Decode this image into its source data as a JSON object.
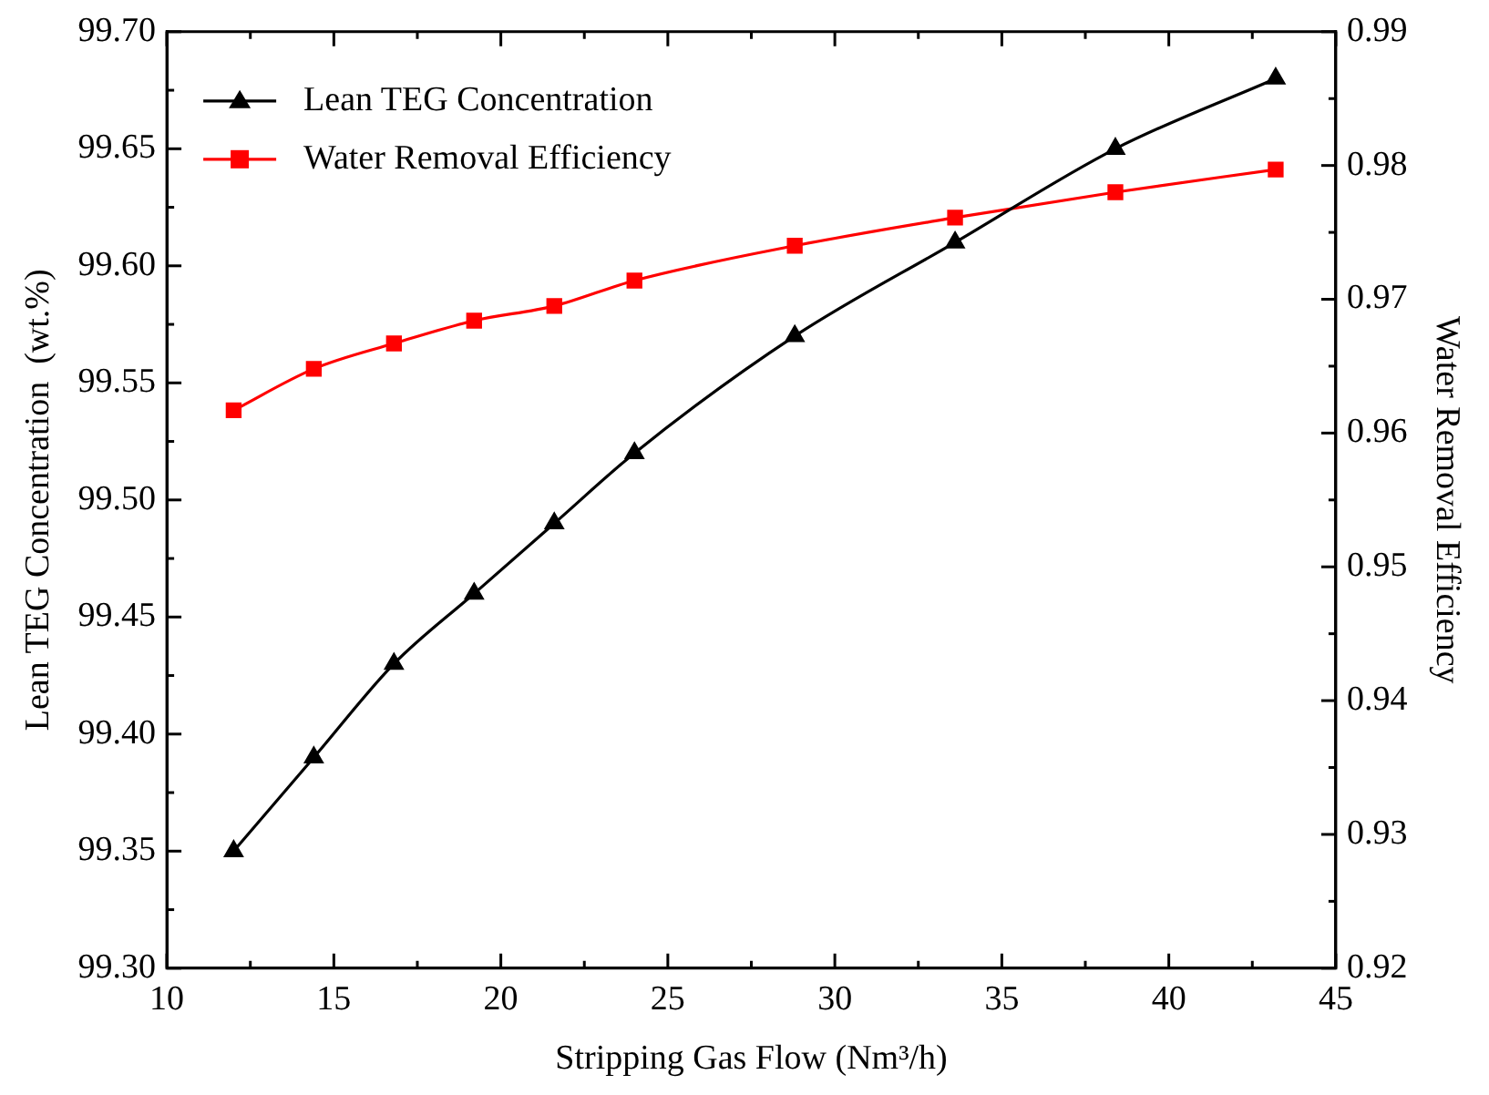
{
  "chart_data": {
    "type": "line",
    "xlabel": "Stripping Gas Flow (Nm³/h)",
    "ylabel": "Lean TEG Concentration  (wt.%)",
    "y2label": "Water Removal Efficiency",
    "x": [
      12,
      14.4,
      16.8,
      19.2,
      21.6,
      24,
      28.8,
      33.6,
      38.4,
      43.2
    ],
    "series": [
      {
        "name": "Lean TEG Concentration",
        "color": "#000000",
        "marker": "triangle",
        "values": [
          99.35,
          99.39,
          99.43,
          99.46,
          99.49,
          99.52,
          99.57,
          99.61,
          99.65,
          99.68
        ]
      },
      {
        "name": "Water Removal Efficiency",
        "color": "#ff0000",
        "marker": "square",
        "axis": "y2",
        "values": [
          0.9617,
          0.9648,
          0.9667,
          0.9684,
          0.9695,
          0.9714,
          0.974,
          0.9761,
          0.978,
          0.9797
        ]
      }
    ],
    "xlim": [
      10,
      45
    ],
    "xticks": [
      10,
      {
        "value": 12.5,
        "label": null
      },
      15,
      {
        "value": 17.5,
        "label": null
      },
      20,
      {
        "value": 22.5,
        "label": null
      },
      25,
      {
        "value": 27.5,
        "label": null
      },
      30,
      {
        "value": 32.5,
        "label": null
      },
      35,
      {
        "value": 37.5,
        "label": null
      },
      40,
      {
        "value": 42.5,
        "label": null
      },
      45
    ],
    "ylim": [
      99.3,
      99.7
    ],
    "yticks": [
      {
        "value": 99.3,
        "label": "99.30"
      },
      {
        "value": 99.325,
        "label": null
      },
      {
        "value": 99.35,
        "label": "99.35"
      },
      {
        "value": 99.375,
        "label": null
      },
      {
        "value": 99.4,
        "label": "99.40"
      },
      {
        "value": 99.425,
        "label": null
      },
      {
        "value": 99.45,
        "label": "99.45"
      },
      {
        "value": 99.475,
        "label": null
      },
      {
        "value": 99.5,
        "label": "99.50"
      },
      {
        "value": 99.525,
        "label": null
      },
      {
        "value": 99.55,
        "label": "99.55"
      },
      {
        "value": 99.575,
        "label": null
      },
      {
        "value": 99.6,
        "label": "99.60"
      },
      {
        "value": 99.625,
        "label": null
      },
      {
        "value": 99.65,
        "label": "99.65"
      },
      {
        "value": 99.675,
        "label": null
      },
      {
        "value": 99.7,
        "label": "99.70"
      }
    ],
    "y2lim": [
      0.92,
      0.99
    ],
    "y2ticks": [
      0.92,
      {
        "value": 0.925,
        "label": null
      },
      0.93,
      {
        "value": 0.935,
        "label": null
      },
      0.94,
      {
        "value": 0.945,
        "label": null
      },
      0.95,
      {
        "value": 0.955,
        "label": null
      },
      0.96,
      {
        "value": 0.965,
        "label": null
      },
      0.97,
      {
        "value": 0.975,
        "label": null
      },
      0.98,
      {
        "value": 0.985,
        "label": null
      },
      0.99
    ],
    "grid": false,
    "legend": "top left",
    "line_style": "solid"
  }
}
